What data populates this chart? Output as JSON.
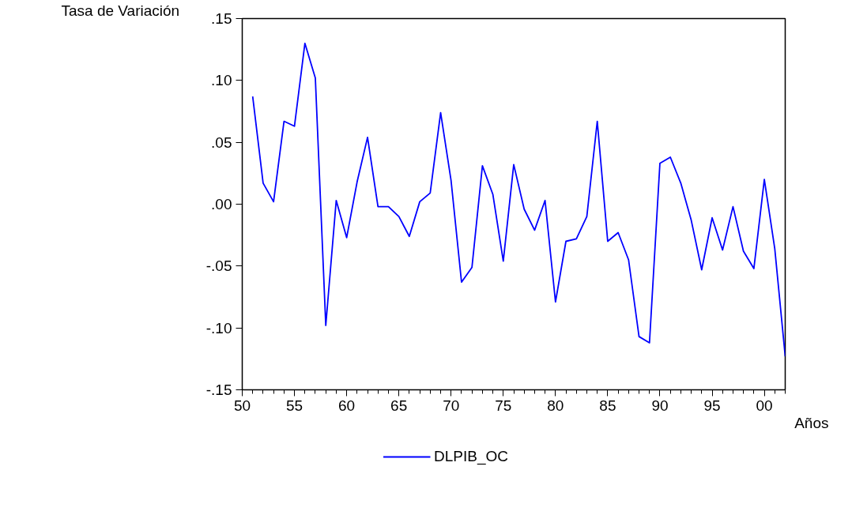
{
  "chart_data": {
    "type": "line",
    "ylabel": "Tasa de Variación",
    "xlabel": "Años",
    "x": [
      1951,
      1952,
      1953,
      1954,
      1955,
      1956,
      1957,
      1958,
      1959,
      1960,
      1961,
      1962,
      1963,
      1964,
      1965,
      1966,
      1967,
      1968,
      1969,
      1970,
      1971,
      1972,
      1973,
      1974,
      1975,
      1976,
      1977,
      1978,
      1979,
      1980,
      1981,
      1982,
      1983,
      1984,
      1985,
      1986,
      1987,
      1988,
      1989,
      1990,
      1991,
      1992,
      1993,
      1994,
      1995,
      1996,
      1997,
      1998,
      1999,
      2000,
      2001,
      2002
    ],
    "series": [
      {
        "name": "DLPIB_OC",
        "color": "#0000ff",
        "values": [
          0.087,
          0.017,
          0.002,
          0.067,
          0.063,
          0.13,
          0.102,
          -0.098,
          0.003,
          -0.027,
          0.018,
          0.054,
          -0.002,
          -0.002,
          -0.01,
          -0.026,
          0.002,
          0.009,
          0.074,
          0.019,
          -0.063,
          -0.051,
          0.031,
          0.008,
          -0.046,
          0.032,
          -0.004,
          -0.021,
          0.003,
          -0.079,
          -0.03,
          -0.028,
          -0.01,
          0.067,
          -0.03,
          -0.023,
          -0.045,
          -0.107,
          -0.112,
          0.033,
          0.038,
          0.017,
          -0.013,
          -0.053,
          -0.011,
          -0.037,
          -0.002,
          -0.038,
          -0.052,
          0.02,
          -0.036,
          -0.123
        ]
      }
    ],
    "xlim": [
      1950,
      2002
    ],
    "ylim": [
      -0.15,
      0.15
    ],
    "xticks": [
      {
        "value": 1950,
        "label": "50"
      },
      {
        "value": 1955,
        "label": "55"
      },
      {
        "value": 1960,
        "label": "60"
      },
      {
        "value": 1965,
        "label": "65"
      },
      {
        "value": 1970,
        "label": "70"
      },
      {
        "value": 1975,
        "label": "75"
      },
      {
        "value": 1980,
        "label": "80"
      },
      {
        "value": 1985,
        "label": "85"
      },
      {
        "value": 1990,
        "label": "90"
      },
      {
        "value": 1995,
        "label": "95"
      },
      {
        "value": 2000,
        "label": "00"
      }
    ],
    "yticks": [
      {
        "value": -0.15,
        "label": "-.15"
      },
      {
        "value": -0.1,
        "label": "-.10"
      },
      {
        "value": -0.05,
        "label": "-.05"
      },
      {
        "value": 0,
        "label": ".00"
      },
      {
        "value": 0.05,
        "label": ".05"
      },
      {
        "value": 0.1,
        "label": ".10"
      },
      {
        "value": 0.15,
        "label": ".15"
      }
    ],
    "grid": false,
    "legend": "bottom",
    "line_style": "solid",
    "marker": "none"
  }
}
